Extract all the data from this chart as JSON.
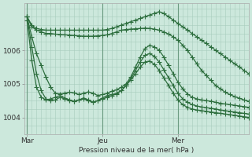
{
  "background_color": "#cce8dc",
  "grid_color": "#a8ccbc",
  "line_color": "#2d6e3e",
  "marker": "+",
  "markersize": 4,
  "linewidth": 0.9,
  "xlabel": "Pression niveau de la mer( hPa )",
  "yticks": [
    1004,
    1005,
    1006
  ],
  "ylim": [
    1003.5,
    1007.4
  ],
  "xtick_labels": [
    "Mar",
    "Jeu",
    "Mer"
  ],
  "xtick_positions": [
    0,
    16,
    32
  ],
  "vline_positions": [
    0,
    16,
    32
  ],
  "xlim": [
    -0.5,
    47
  ],
  "n_points": 48,
  "series": [
    [
      1007.0,
      1006.75,
      1006.65,
      1006.62,
      1006.6,
      1006.6,
      1006.6,
      1006.6,
      1006.6,
      1006.6,
      1006.6,
      1006.6,
      1006.6,
      1006.6,
      1006.6,
      1006.6,
      1006.6,
      1006.62,
      1006.65,
      1006.7,
      1006.75,
      1006.8,
      1006.85,
      1006.9,
      1006.95,
      1007.0,
      1007.05,
      1007.1,
      1007.15,
      1007.1,
      1007.0,
      1006.9,
      1006.8,
      1006.7,
      1006.6,
      1006.5,
      1006.4,
      1006.3,
      1006.2,
      1006.1,
      1006.0,
      1005.9,
      1005.8,
      1005.7,
      1005.6,
      1005.5,
      1005.4,
      1005.3
    ],
    [
      1007.0,
      1006.7,
      1006.6,
      1006.55,
      1006.5,
      1006.5,
      1006.48,
      1006.47,
      1006.46,
      1006.45,
      1006.44,
      1006.43,
      1006.42,
      1006.42,
      1006.42,
      1006.43,
      1006.44,
      1006.46,
      1006.5,
      1006.55,
      1006.6,
      1006.62,
      1006.63,
      1006.64,
      1006.65,
      1006.66,
      1006.65,
      1006.63,
      1006.6,
      1006.55,
      1006.48,
      1006.4,
      1006.3,
      1006.15,
      1006.0,
      1005.8,
      1005.6,
      1005.4,
      1005.25,
      1005.1,
      1004.95,
      1004.85,
      1004.75,
      1004.68,
      1004.62,
      1004.57,
      1004.52,
      1004.48
    ],
    [
      1007.0,
      1006.4,
      1005.9,
      1005.55,
      1005.2,
      1004.9,
      1004.72,
      1004.7,
      1004.72,
      1004.75,
      1004.73,
      1004.68,
      1004.72,
      1004.76,
      1004.72,
      1004.65,
      1004.68,
      1004.72,
      1004.78,
      1004.82,
      1004.9,
      1005.0,
      1005.2,
      1005.5,
      1005.8,
      1006.05,
      1006.15,
      1006.1,
      1006.0,
      1005.8,
      1005.55,
      1005.3,
      1005.05,
      1004.85,
      1004.7,
      1004.6,
      1004.55,
      1004.52,
      1004.5,
      1004.48,
      1004.45,
      1004.42,
      1004.4,
      1004.38,
      1004.36,
      1004.34,
      1004.32,
      1004.3
    ],
    [
      1007.0,
      1006.1,
      1005.3,
      1004.8,
      1004.55,
      1004.5,
      1004.52,
      1004.6,
      1004.55,
      1004.5,
      1004.48,
      1004.52,
      1004.55,
      1004.5,
      1004.45,
      1004.5,
      1004.55,
      1004.6,
      1004.65,
      1004.7,
      1004.8,
      1004.95,
      1005.15,
      1005.4,
      1005.65,
      1005.85,
      1005.9,
      1005.82,
      1005.65,
      1005.42,
      1005.18,
      1004.95,
      1004.72,
      1004.55,
      1004.45,
      1004.38,
      1004.34,
      1004.31,
      1004.29,
      1004.27,
      1004.25,
      1004.22,
      1004.2,
      1004.18,
      1004.16,
      1004.14,
      1004.12,
      1004.1
    ],
    [
      1006.9,
      1005.7,
      1004.9,
      1004.6,
      1004.52,
      1004.55,
      1004.6,
      1004.65,
      1004.58,
      1004.52,
      1004.48,
      1004.52,
      1004.58,
      1004.52,
      1004.45,
      1004.5,
      1004.58,
      1004.65,
      1004.68,
      1004.72,
      1004.8,
      1004.95,
      1005.12,
      1005.3,
      1005.5,
      1005.65,
      1005.68,
      1005.58,
      1005.4,
      1005.18,
      1004.95,
      1004.72,
      1004.52,
      1004.38,
      1004.3,
      1004.25,
      1004.22,
      1004.2,
      1004.18,
      1004.16,
      1004.14,
      1004.12,
      1004.1,
      1004.08,
      1004.06,
      1004.04,
      1004.02,
      1004.0
    ]
  ]
}
